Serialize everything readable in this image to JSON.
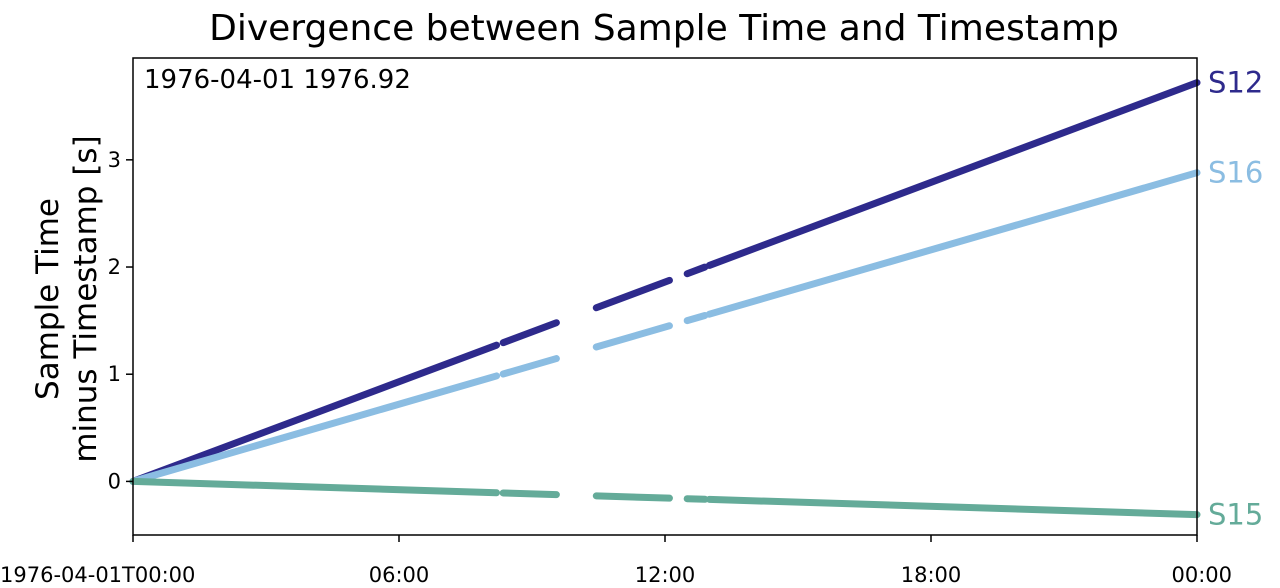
{
  "chart_data": {
    "type": "line",
    "title": "Divergence between Sample Time and Timestamp",
    "ylabel_lines": [
      "Sample Time",
      "minus Timestamp [s]"
    ],
    "xlabel": "",
    "annotation": "1976-04-01 1976.92",
    "x_ticks": [
      {
        "hour": 0,
        "label": "1976-04-01T00:00"
      },
      {
        "hour": 6,
        "label": "06:00"
      },
      {
        "hour": 12,
        "label": "12:00"
      },
      {
        "hour": 18,
        "label": "18:00"
      },
      {
        "hour": 24,
        "label": "00:00"
      }
    ],
    "y_ticks": [
      0,
      1,
      2,
      3
    ],
    "xlim": [
      0,
      24
    ],
    "ylim": [
      -0.5,
      3.95
    ],
    "gaps_hours": [
      [
        8.2,
        8.35
      ],
      [
        9.55,
        10.45
      ],
      [
        12.1,
        12.5
      ],
      [
        12.9,
        13.0
      ]
    ],
    "series": [
      {
        "name": "S12",
        "color": "#2e2a8c",
        "x": [
          0,
          24
        ],
        "y": [
          0,
          3.72
        ]
      },
      {
        "name": "S16",
        "color": "#8bbde2",
        "x": [
          0,
          24
        ],
        "y": [
          0,
          2.88
        ]
      },
      {
        "name": "S15",
        "color": "#64ab99",
        "x": [
          0,
          24
        ],
        "y": [
          0,
          -0.31
        ]
      }
    ]
  }
}
